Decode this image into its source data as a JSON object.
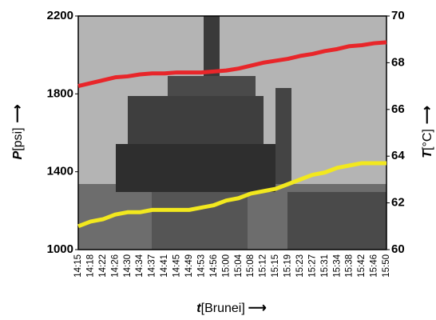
{
  "chart_data": {
    "type": "line",
    "y_label": {
      "symbol": "P",
      "unit": "[psi]"
    },
    "y2_label": {
      "symbol": "T",
      "unit": "[°C]"
    },
    "x_label": {
      "symbol": "t",
      "unit": "[Brunei]"
    },
    "categories": [
      "14:15",
      "14:18",
      "14:22",
      "14:26",
      "14:30",
      "14:34",
      "14:37",
      "14:41",
      "14:45",
      "14:49",
      "14:53",
      "14:56",
      "15:00",
      "15:04",
      "15:08",
      "15:12",
      "15:15",
      "15:19",
      "15:23",
      "15:27",
      "15:31",
      "15:34",
      "15:38",
      "15:42",
      "15:46",
      "15:50"
    ],
    "series": [
      {
        "color": "#e8262a",
        "axis": "y",
        "values": [
          1840,
          1855,
          1870,
          1885,
          1890,
          1900,
          1905,
          1905,
          1910,
          1910,
          1910,
          1915,
          1920,
          1930,
          1945,
          1960,
          1970,
          1980,
          1995,
          2005,
          2020,
          2030,
          2045,
          2050,
          2060,
          2065
        ]
      },
      {
        "color": "#f2e81e",
        "axis": "y2",
        "values": [
          61.0,
          61.2,
          61.3,
          61.5,
          61.6,
          61.6,
          61.7,
          61.7,
          61.7,
          61.7,
          61.8,
          61.9,
          62.1,
          62.2,
          62.4,
          62.5,
          62.6,
          62.8,
          63.0,
          63.2,
          63.3,
          63.5,
          63.6,
          63.7,
          63.7,
          63.7
        ]
      }
    ],
    "ylim": [
      1000,
      2200
    ],
    "yticks": [
      1000,
      1400,
      1800,
      2200
    ],
    "y2lim": [
      60,
      70
    ],
    "y2ticks": [
      60,
      62,
      64,
      66,
      68,
      70
    ]
  }
}
